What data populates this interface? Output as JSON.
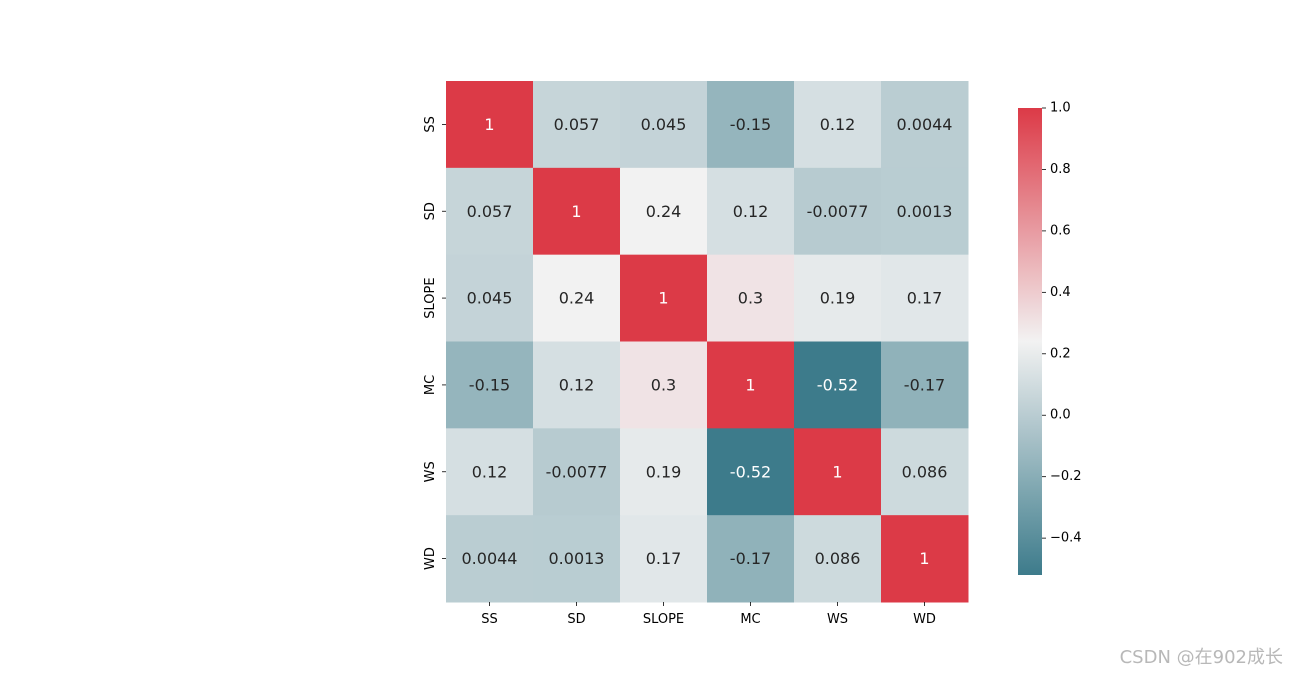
{
  "chart_data": {
    "type": "heatmap",
    "x_labels": [
      "SS",
      "SD",
      "SLOPE",
      "MC",
      "WS",
      "WD"
    ],
    "y_labels": [
      "SS",
      "SD",
      "SLOPE",
      "MC",
      "WS",
      "WD"
    ],
    "values": [
      [
        1,
        0.057,
        0.045,
        -0.15,
        0.12,
        0.0044
      ],
      [
        0.057,
        1,
        0.24,
        0.12,
        -0.0077,
        0.0013
      ],
      [
        0.045,
        0.24,
        1,
        0.3,
        0.19,
        0.17
      ],
      [
        -0.15,
        0.12,
        0.3,
        1,
        -0.52,
        -0.17
      ],
      [
        0.12,
        -0.0077,
        0.19,
        -0.52,
        1,
        0.086
      ],
      [
        0.0044,
        0.0013,
        0.17,
        -0.17,
        0.086,
        1
      ]
    ],
    "annotations": [
      [
        "1",
        "0.057",
        "0.045",
        "-0.15",
        "0.12",
        "0.0044"
      ],
      [
        "0.057",
        "1",
        "0.24",
        "0.12",
        "-0.0077",
        "0.0013"
      ],
      [
        "0.045",
        "0.24",
        "1",
        "0.3",
        "0.19",
        "0.17"
      ],
      [
        "-0.15",
        "0.12",
        "0.3",
        "1",
        "-0.52",
        "-0.17"
      ],
      [
        "0.12",
        "-0.0077",
        "0.19",
        "-0.52",
        "1",
        "0.086"
      ],
      [
        "0.0044",
        "0.0013",
        "0.17",
        "-0.17",
        "0.086",
        "1"
      ]
    ],
    "colorbar": {
      "range": [
        -0.52,
        1.0
      ],
      "center": 0.24,
      "ticks": [
        1.0,
        0.8,
        0.6,
        0.4,
        0.2,
        0.0,
        -0.2,
        -0.4
      ],
      "tick_labels": [
        "1.0",
        "0.8",
        "0.6",
        "0.4",
        "0.2",
        "0.0",
        "−0.2",
        "−0.4"
      ]
    },
    "colors": {
      "low": "#3d7b8b",
      "mid": "#f2f2f2",
      "high": "#dc3a47"
    }
  },
  "watermark": "CSDN @在902成长"
}
